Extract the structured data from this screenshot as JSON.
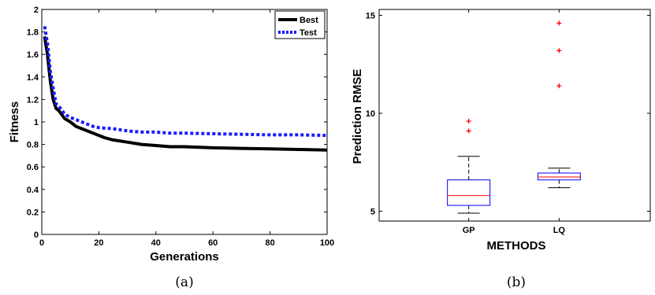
{
  "chart_data": [
    {
      "type": "line",
      "xlabel": "Generations",
      "ylabel": "Fitness",
      "xlim": [
        0,
        100
      ],
      "ylim": [
        0,
        2
      ],
      "xticks": [
        "0",
        "20",
        "40",
        "60",
        "80",
        "100"
      ],
      "yticks": [
        "0",
        "0.2",
        "0.4",
        "0.6",
        "0.8",
        "1",
        "1.2",
        "1.4",
        "1.6",
        "1.8",
        "2"
      ],
      "legend_position": "top-right",
      "grid": false,
      "series": [
        {
          "name": "Best",
          "color": "#000000",
          "style": "solid",
          "x": [
            1,
            2,
            3,
            4,
            5,
            6,
            8,
            10,
            12,
            14,
            16,
            18,
            20,
            22,
            25,
            30,
            35,
            40,
            45,
            50,
            60,
            70,
            80,
            90,
            100
          ],
          "y": [
            1.76,
            1.6,
            1.36,
            1.2,
            1.12,
            1.1,
            1.03,
            1.0,
            0.96,
            0.94,
            0.92,
            0.9,
            0.88,
            0.86,
            0.84,
            0.82,
            0.8,
            0.79,
            0.78,
            0.78,
            0.77,
            0.765,
            0.76,
            0.755,
            0.75
          ]
        },
        {
          "name": "Test",
          "color": "#1a1aff",
          "style": "dotted",
          "x": [
            1,
            2,
            3,
            4,
            5,
            6,
            8,
            10,
            12,
            14,
            16,
            18,
            20,
            22,
            25,
            30,
            35,
            40,
            45,
            50,
            60,
            70,
            80,
            90,
            100
          ],
          "y": [
            1.85,
            1.7,
            1.45,
            1.3,
            1.16,
            1.14,
            1.07,
            1.04,
            1.02,
            1.0,
            0.98,
            0.96,
            0.95,
            0.945,
            0.94,
            0.92,
            0.91,
            0.91,
            0.9,
            0.9,
            0.895,
            0.89,
            0.885,
            0.885,
            0.88
          ]
        }
      ]
    },
    {
      "type": "box",
      "xlabel": "METHODS",
      "ylabel": "Prediction RMSE",
      "ylim": [
        4.5,
        15.3
      ],
      "categories": [
        "GP",
        "LQ"
      ],
      "yticks": [
        "5",
        "10",
        "15"
      ],
      "ytick_values": [
        5,
        10,
        15
      ],
      "box_color": "#0000ff",
      "median_color": "#ff0000",
      "outlier_color": "#ff0000",
      "boxes": [
        {
          "name": "GP",
          "whisker_low": 4.9,
          "q1": 5.3,
          "median": 5.8,
          "q3": 6.6,
          "whisker_high": 7.8,
          "outliers": [
            9.1,
            9.6
          ]
        },
        {
          "name": "LQ",
          "whisker_low": 6.2,
          "q1": 6.6,
          "median": 6.75,
          "q3": 6.95,
          "whisker_high": 7.2,
          "outliers": [
            11.4,
            13.2,
            14.6
          ]
        }
      ]
    }
  ],
  "captions": {
    "left": "(a)",
    "right": "(b)"
  }
}
